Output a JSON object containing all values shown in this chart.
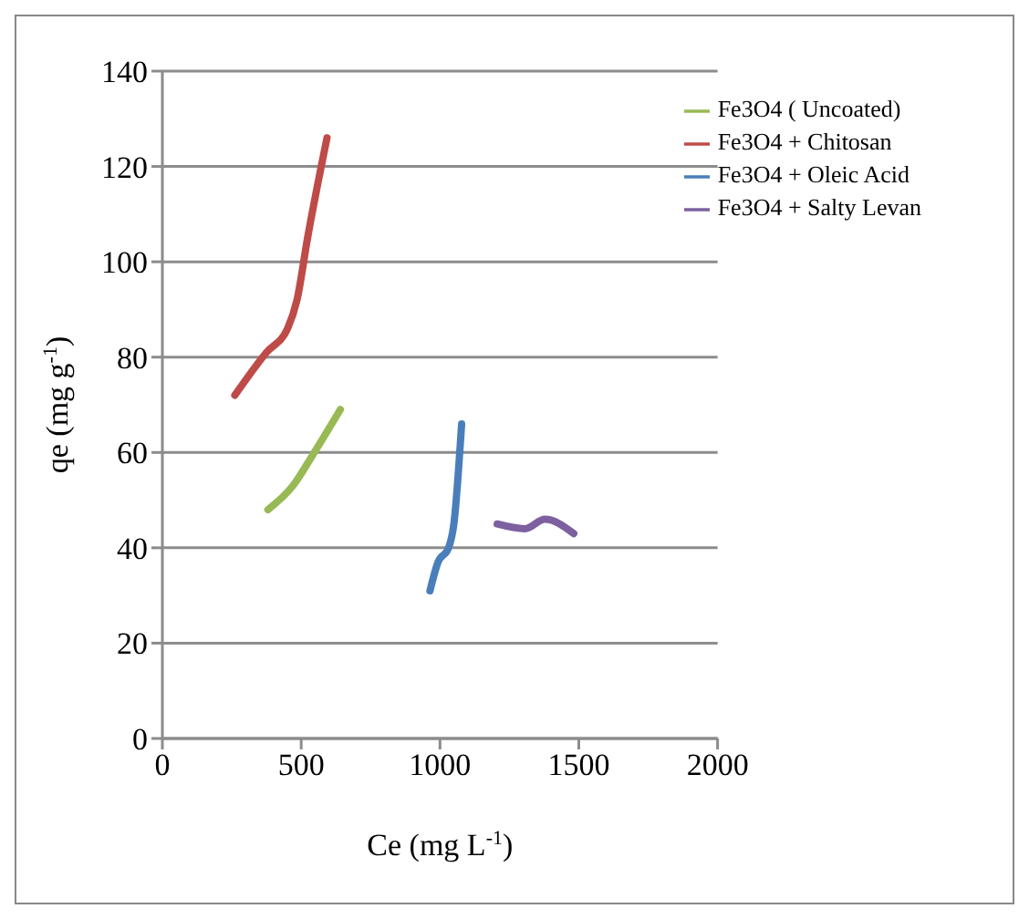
{
  "chart_data": {
    "type": "line",
    "xlabel": "Ce (mg L$^{-1}$)",
    "ylabel": "qe (mg g$^{-1}$)",
    "xlim": [
      0,
      2000
    ],
    "xticks": [
      0,
      500,
      1000,
      1500,
      2000
    ],
    "ylim": [
      0,
      140
    ],
    "yticks": [
      0,
      20,
      40,
      60,
      80,
      100,
      120,
      140
    ],
    "grid": "y",
    "legend": "top right",
    "marker": "none",
    "line_style": "solid",
    "series": [
      {
        "name": "Fe3O4 + Oleic Acid",
        "color": "#4a7ebb",
        "x": [
          964,
          993,
          1031,
          1050,
          1078
        ],
        "values": [
          31,
          37,
          40,
          45,
          66
        ]
      },
      {
        "name": "Fe3O4 + Chitosan",
        "color": "#be4b48",
        "x": [
          261,
          375,
          451,
          485,
          523,
          593
        ],
        "values": [
          72,
          81,
          86,
          92,
          105,
          126
        ]
      },
      {
        "name": "Fe3O4 ( Uncoated)",
        "color": "#98b954",
        "x": [
          380,
          470,
          547,
          641
        ],
        "values": [
          48,
          53,
          60,
          69
        ]
      },
      {
        "name": "Fe3O4 + Salty Levan",
        "color": "#7d60a0",
        "x": [
          1206,
          1306,
          1378,
          1482
        ],
        "values": [
          45,
          44,
          46,
          43
        ]
      }
    ]
  }
}
